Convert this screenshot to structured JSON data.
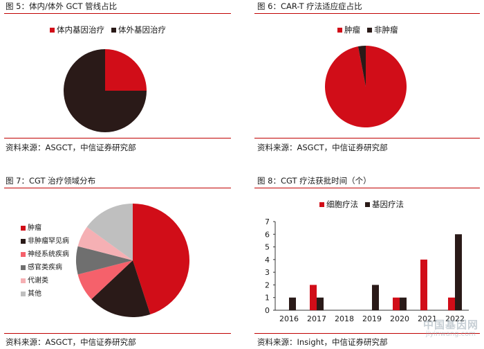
{
  "colors": {
    "red": "#d10d18",
    "dark": "#2a1a18",
    "pink": "#f5616b",
    "gray": "#6f6f6f",
    "lightpink": "#f5b0b4",
    "lightgray": "#bfbfbf",
    "rule": "#c00000"
  },
  "panels": [
    {
      "title": "图 5：体内/体外 GCT 管线占比",
      "source": "资料来源：ASGCT，中信证券研究部"
    },
    {
      "title": "图 6：CAR-T 疗法适应症占比",
      "source": "资料来源：ASGCT，中信证券研究部"
    },
    {
      "title": "图 7：CGT 治疗领域分布",
      "source": "资料来源：ASGCT，中信证券研究部"
    },
    {
      "title": "图 8：CGT 疗法获批时间（个）",
      "source": "资料来源：Insight，中信证券研究部"
    }
  ],
  "chart_data": [
    {
      "type": "pie",
      "labels": [
        "体内基因治疗",
        "体外基因治疗"
      ],
      "values": [
        25,
        75
      ],
      "colors": [
        "#d10d18",
        "#2a1a18"
      ],
      "legend": "top"
    },
    {
      "type": "pie",
      "labels": [
        "肿瘤",
        "非肿瘤"
      ],
      "values": [
        97,
        3
      ],
      "colors": [
        "#d10d18",
        "#2a1a18"
      ],
      "legend": "top"
    },
    {
      "type": "pie",
      "labels": [
        "肿瘤",
        "非肿瘤罕见病",
        "神经系统疾病",
        "感官类疾病",
        "代谢类",
        "其他"
      ],
      "values": [
        45,
        18,
        8,
        8,
        6,
        15
      ],
      "colors": [
        "#d10d18",
        "#2a1a18",
        "#f5616b",
        "#6f6f6f",
        "#f5b0b4",
        "#bfbfbf"
      ],
      "legend": "left"
    },
    {
      "type": "bar",
      "categories": [
        "2016",
        "2017",
        "2018",
        "2019",
        "2020",
        "2021",
        "2022"
      ],
      "series": [
        {
          "name": "细胞疗法",
          "values": [
            0,
            2,
            0,
            0,
            1,
            4,
            1
          ],
          "color": "#d10d18"
        },
        {
          "name": "基因疗法",
          "values": [
            1,
            1,
            0,
            2,
            1,
            0,
            6
          ],
          "color": "#2a1a18"
        }
      ],
      "ylim": [
        0,
        7
      ],
      "yticks": [
        0,
        1,
        2,
        3,
        4,
        5,
        6,
        7
      ],
      "legend": "top",
      "grid": false
    }
  ],
  "watermark": {
    "main": "中国基因网",
    "sub": "jiyinwang.com"
  }
}
